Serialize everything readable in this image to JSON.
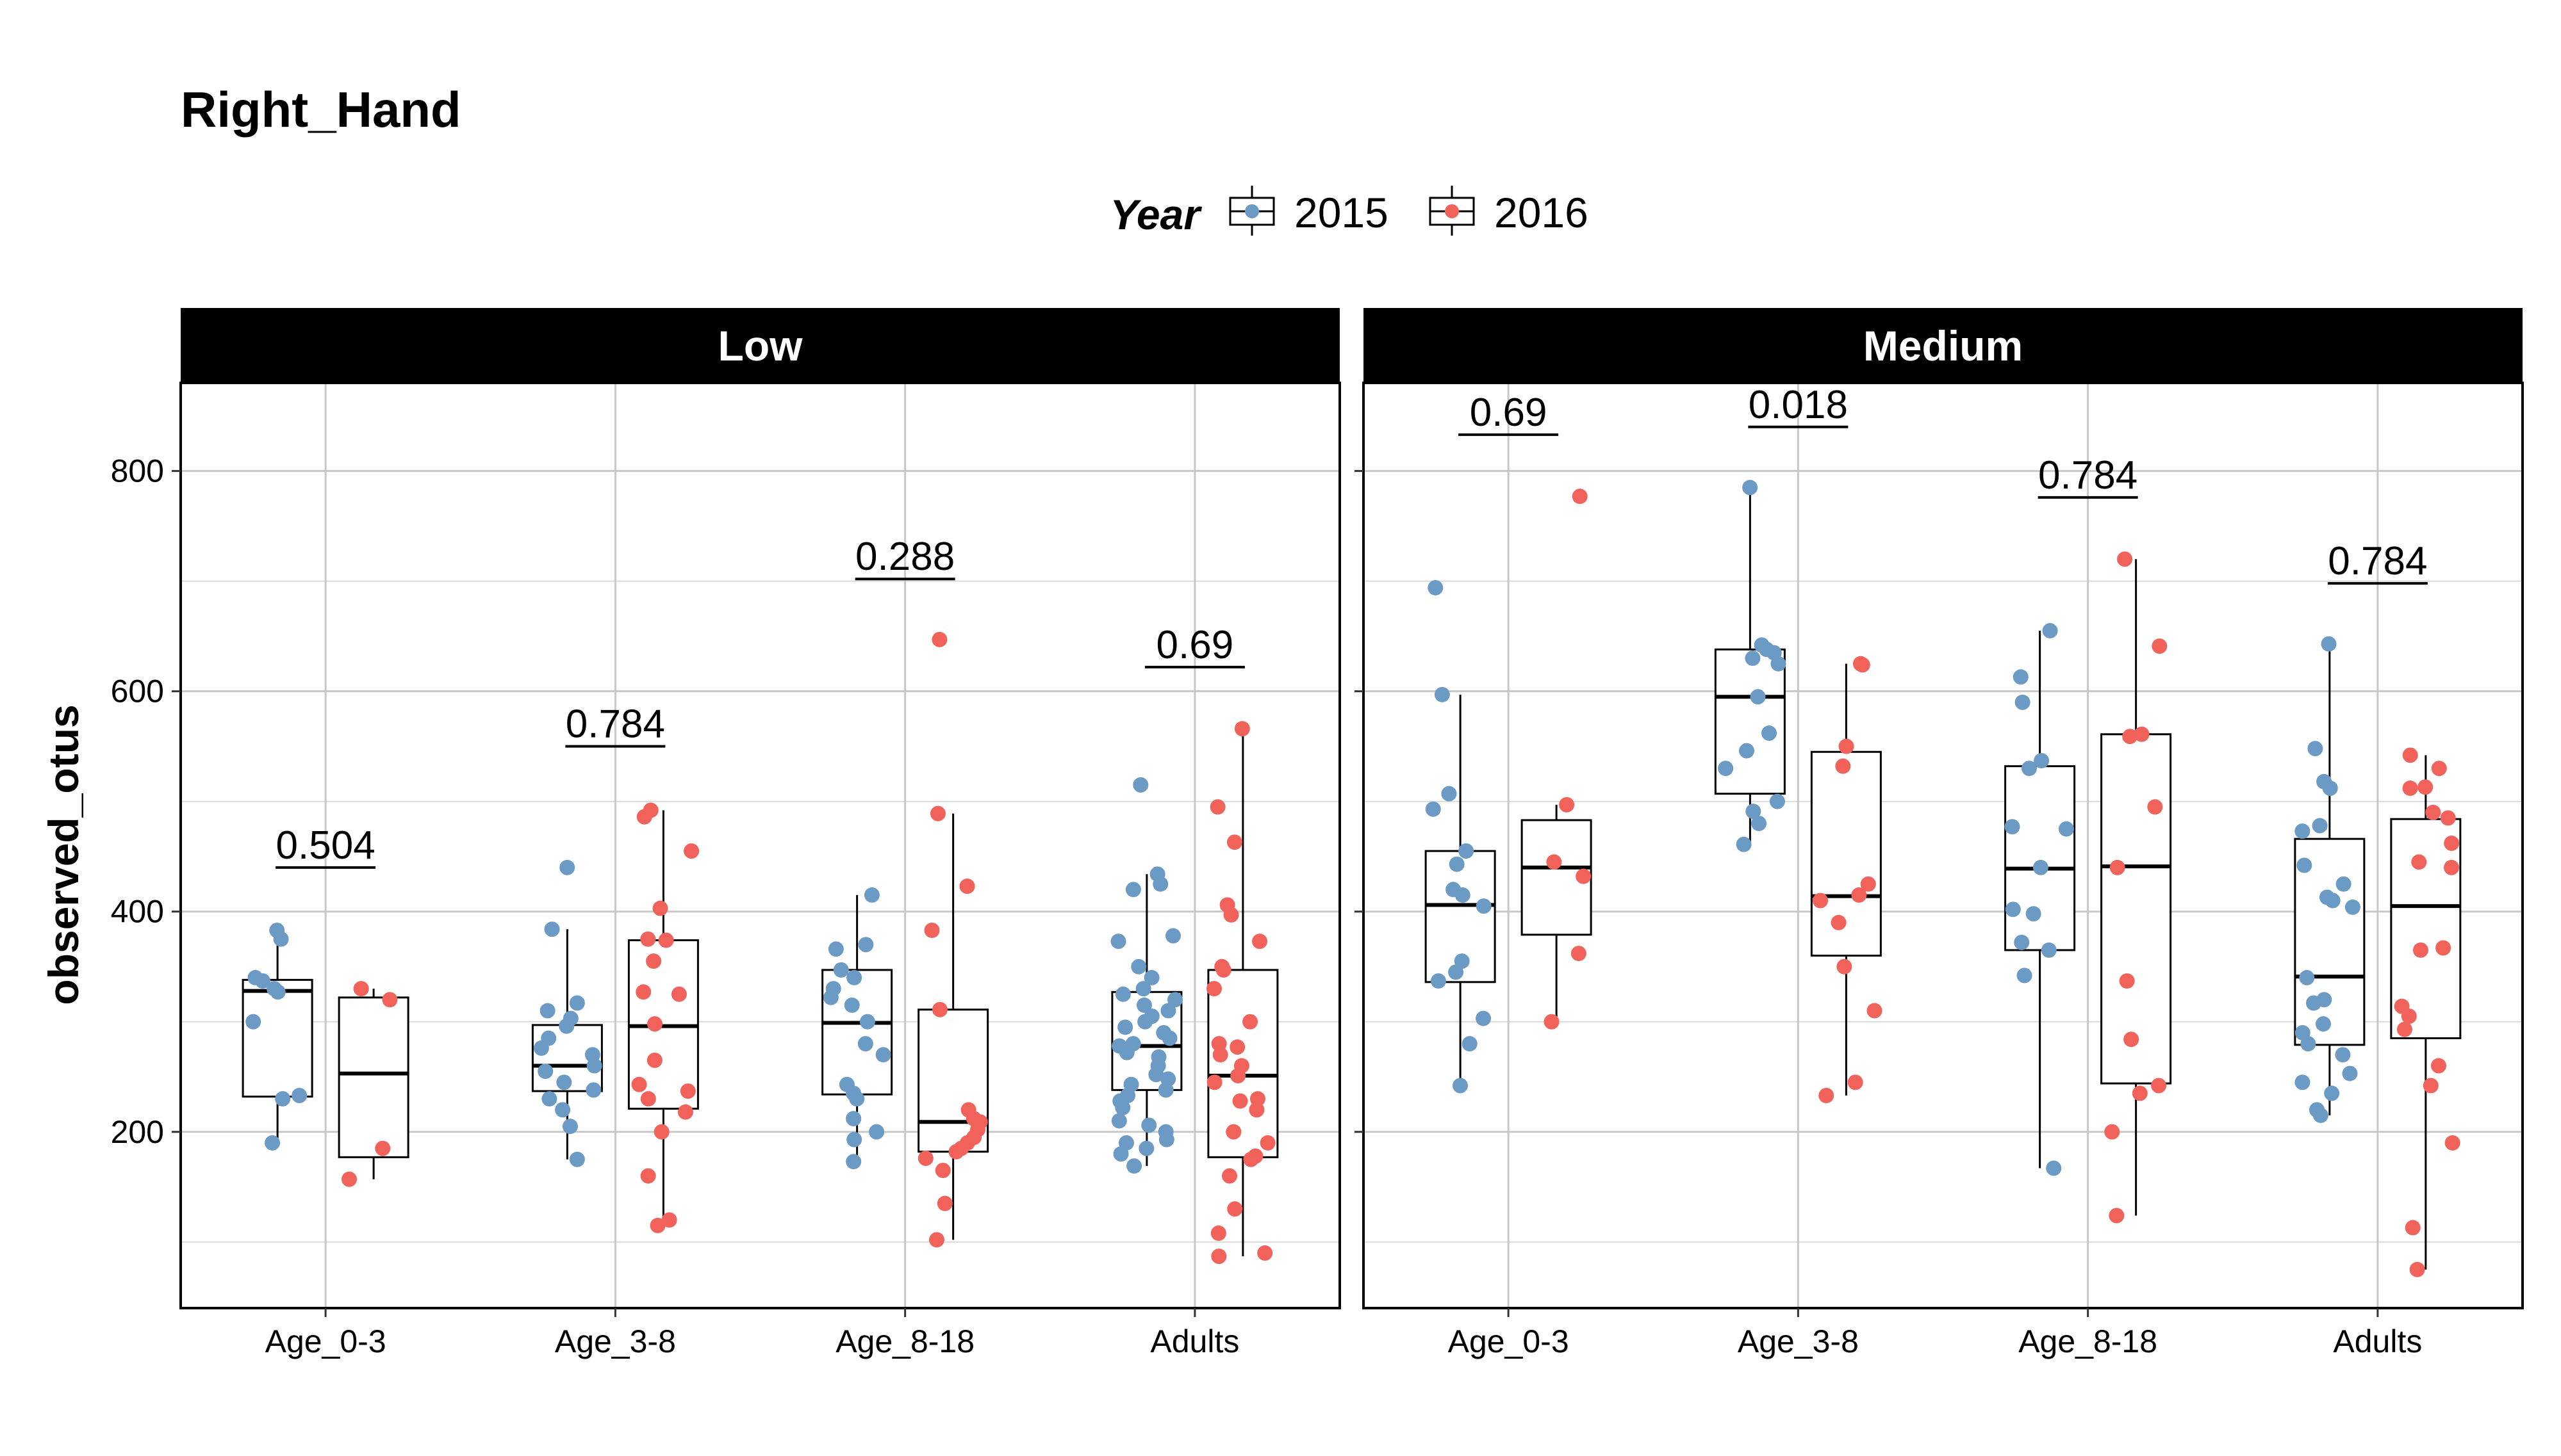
{
  "chart_data": {
    "type": "boxplot",
    "title": "Right_Hand",
    "ylabel": "observed_otus",
    "xlabel": "",
    "ylim": [
      40,
      880
    ],
    "yticks": [
      200,
      400,
      600,
      800
    ],
    "grid": true,
    "legend": {
      "title": "Year",
      "placement": "top",
      "entries": [
        {
          "label": "2015",
          "color": "#6b9ac4"
        },
        {
          "label": "2016",
          "color": "#f0625a"
        }
      ]
    },
    "categories": [
      "Age_0-3",
      "Age_3-8",
      "Age_8-18",
      "Adults"
    ],
    "facets": [
      {
        "label": "Low",
        "groups": [
          {
            "category": "Age_0-3",
            "p_value": "0.504",
            "p_y": 440,
            "boxes": {
              "2015": {
                "min": 190,
                "q1": 232,
                "median": 328,
                "q3": 338,
                "max": 383,
                "points": [
                  383,
                  375,
                  340,
                  337,
                  330,
                  327,
                  300,
                  233,
                  230,
                  190
                ]
              },
              "2016": {
                "min": 157,
                "q1": 177,
                "median": 253,
                "q3": 322,
                "max": 330,
                "points": [
                  330,
                  320,
                  185,
                  157
                ]
              }
            }
          },
          {
            "category": "Age_3-8",
            "p_value": "0.784",
            "p_y": 550,
            "boxes": {
              "2015": {
                "min": 175,
                "q1": 237,
                "median": 260,
                "q3": 297,
                "max": 384,
                "points": [
                  440,
                  384,
                  317,
                  310,
                  303,
                  296,
                  285,
                  276,
                  270,
                  260,
                  255,
                  245,
                  238,
                  230,
                  220,
                  205,
                  175
                ]
              },
              "2016": {
                "min": 115,
                "q1": 221,
                "median": 296,
                "q3": 374,
                "max": 492,
                "points": [
                  492,
                  486,
                  455,
                  403,
                  375,
                  374,
                  355,
                  327,
                  325,
                  298,
                  265,
                  243,
                  237,
                  230,
                  218,
                  200,
                  160,
                  120,
                  115
                ]
              }
            }
          },
          {
            "category": "Age_8-18",
            "p_value": "0.288",
            "p_y": 702,
            "boxes": {
              "2015": {
                "min": 173,
                "q1": 234,
                "median": 299,
                "q3": 347,
                "max": 415,
                "points": [
                  415,
                  370,
                  366,
                  347,
                  340,
                  330,
                  322,
                  315,
                  300,
                  280,
                  270,
                  243,
                  235,
                  230,
                  212,
                  200,
                  193,
                  173
                ]
              },
              "2016": {
                "min": 102,
                "q1": 182,
                "median": 209,
                "q3": 311,
                "max": 489,
                "points": [
                  647,
                  489,
                  423,
                  383,
                  311,
                  220,
                  212,
                  209,
                  202,
                  195,
                  190,
                  185,
                  182,
                  176,
                  165,
                  135,
                  102
                ]
              }
            }
          },
          {
            "category": "Adults",
            "p_value": "0.69",
            "p_y": 622,
            "boxes": {
              "2015": {
                "min": 169,
                "q1": 238,
                "median": 278,
                "q3": 327,
                "max": 434,
                "points": [
                  515,
                  434,
                  425,
                  420,
                  378,
                  373,
                  350,
                  340,
                  330,
                  325,
                  320,
                  315,
                  310,
                  305,
                  300,
                  295,
                  290,
                  285,
                  280,
                  278,
                  272,
                  268,
                  260,
                  252,
                  248,
                  243,
                  238,
                  233,
                  228,
                  222,
                  210,
                  206,
                  200,
                  193,
                  190,
                  185,
                  180,
                  169
                ]
              },
              "2016": {
                "min": 87,
                "q1": 177,
                "median": 251,
                "q3": 347,
                "max": 566,
                "points": [
                  566,
                  495,
                  463,
                  406,
                  397,
                  373,
                  350,
                  347,
                  330,
                  300,
                  280,
                  277,
                  270,
                  260,
                  251,
                  245,
                  230,
                  228,
                  220,
                  200,
                  190,
                  178,
                  175,
                  160,
                  130,
                  108,
                  90,
                  87
                ]
              }
            }
          }
        ]
      },
      {
        "label": "Medium",
        "groups": [
          {
            "category": "Age_0-3",
            "p_value": "0.69",
            "p_y": 833,
            "boxes": {
              "2015": {
                "min": 242,
                "q1": 336,
                "median": 406,
                "q3": 455,
                "max": 597,
                "points": [
                  694,
                  597,
                  507,
                  493,
                  455,
                  443,
                  420,
                  415,
                  405,
                  355,
                  345,
                  337,
                  303,
                  280,
                  242
                ]
              },
              "2016": {
                "min": 300,
                "q1": 379,
                "median": 440,
                "q3": 483,
                "max": 497,
                "points": [
                  777,
                  497,
                  445,
                  432,
                  362,
                  300
                ]
              }
            }
          },
          {
            "category": "Age_3-8",
            "p_value": "0.018",
            "p_y": 840,
            "boxes": {
              "2015": {
                "min": 461,
                "q1": 507,
                "median": 595,
                "q3": 638,
                "max": 785,
                "points": [
                  785,
                  642,
                  638,
                  635,
                  630,
                  625,
                  595,
                  562,
                  546,
                  530,
                  500,
                  491,
                  480,
                  461
                ]
              },
              "2016": {
                "min": 233,
                "q1": 360,
                "median": 414,
                "q3": 545,
                "max": 625,
                "points": [
                  625,
                  624,
                  550,
                  532,
                  425,
                  415,
                  410,
                  390,
                  350,
                  310,
                  245,
                  233
                ]
              }
            }
          },
          {
            "category": "Age_8-18",
            "p_value": "0.784",
            "p_y": 776,
            "boxes": {
              "2015": {
                "min": 167,
                "q1": 365,
                "median": 439,
                "q3": 532,
                "max": 655,
                "points": [
                  655,
                  613,
                  590,
                  537,
                  530,
                  477,
                  475,
                  440,
                  402,
                  398,
                  372,
                  365,
                  342,
                  167
                ]
              },
              "2016": {
                "min": 124,
                "q1": 244,
                "median": 441,
                "q3": 561,
                "max": 720,
                "points": [
                  720,
                  641,
                  561,
                  559,
                  495,
                  440,
                  337,
                  284,
                  242,
                  235,
                  200,
                  124
                ]
              }
            }
          },
          {
            "category": "Adults",
            "p_value": "0.784",
            "p_y": 698,
            "boxes": {
              "2015": {
                "min": 215,
                "q1": 279,
                "median": 341,
                "q3": 466,
                "max": 643,
                "points": [
                  643,
                  548,
                  518,
                  512,
                  478,
                  473,
                  442,
                  425,
                  413,
                  410,
                  404,
                  340,
                  320,
                  317,
                  298,
                  290,
                  280,
                  270,
                  253,
                  245,
                  235,
                  220,
                  215
                ]
              },
              "2016": {
                "min": 75,
                "q1": 285,
                "median": 405,
                "q3": 484,
                "max": 542,
                "points": [
                  542,
                  530,
                  513,
                  512,
                  490,
                  485,
                  462,
                  445,
                  440,
                  367,
                  365,
                  314,
                  305,
                  293,
                  260,
                  242,
                  190,
                  113,
                  75
                ]
              }
            }
          }
        ]
      }
    ]
  }
}
